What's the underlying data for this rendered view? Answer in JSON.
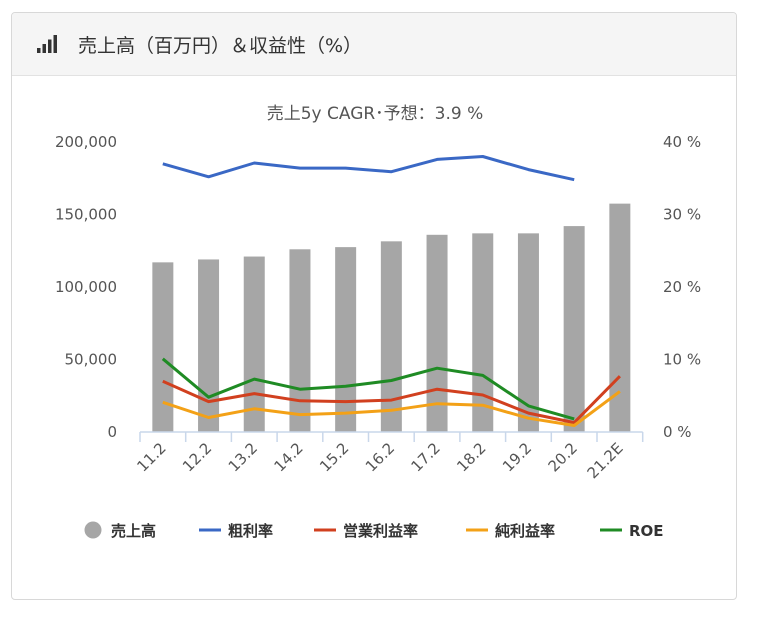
{
  "header": {
    "title": "売上高（百万円）＆収益性（%）",
    "icon": "bar-chart-icon"
  },
  "chart_data": {
    "type": "bar",
    "title": "売上5y CAGR･予想：3.9 %",
    "categories": [
      "11.2",
      "12.2",
      "13.2",
      "14.2",
      "15.2",
      "16.2",
      "17.2",
      "18.2",
      "19.2",
      "20.2",
      "21.2E"
    ],
    "y_left": {
      "ticks": [
        "0",
        "50,000",
        "100,000",
        "150,000",
        "200,000"
      ],
      "range": [
        0,
        200000
      ]
    },
    "y_right": {
      "ticks": [
        "0 %",
        "10 %",
        "20 %",
        "30 %",
        "40 %"
      ],
      "range": [
        0,
        40
      ]
    },
    "bars": {
      "name": "売上高",
      "color": "#a6a6a6",
      "values": [
        117000,
        119000,
        121000,
        126000,
        127500,
        131500,
        136000,
        137000,
        137000,
        142000,
        157500
      ]
    },
    "series": [
      {
        "name": "粗利率",
        "color": "#3a68c5",
        "values": [
          37.0,
          35.2,
          37.1,
          36.4,
          36.4,
          35.9,
          37.6,
          38.0,
          36.2,
          34.8,
          null
        ]
      },
      {
        "name": "営業利益率",
        "color": "#d1401f",
        "values": [
          7.0,
          4.2,
          5.3,
          4.3,
          4.2,
          4.4,
          5.9,
          5.1,
          2.6,
          1.3,
          7.7
        ]
      },
      {
        "name": "純利益率",
        "color": "#f3a117",
        "values": [
          4.1,
          2.0,
          3.2,
          2.4,
          2.6,
          3.0,
          3.9,
          3.7,
          1.9,
          0.9,
          5.6
        ]
      },
      {
        "name": "ROE",
        "color": "#1f8b24",
        "values": [
          10.1,
          4.8,
          7.3,
          5.9,
          6.3,
          7.1,
          8.8,
          7.8,
          3.6,
          1.8,
          null
        ]
      }
    ],
    "legend_position": "bottom",
    "grid": false
  }
}
